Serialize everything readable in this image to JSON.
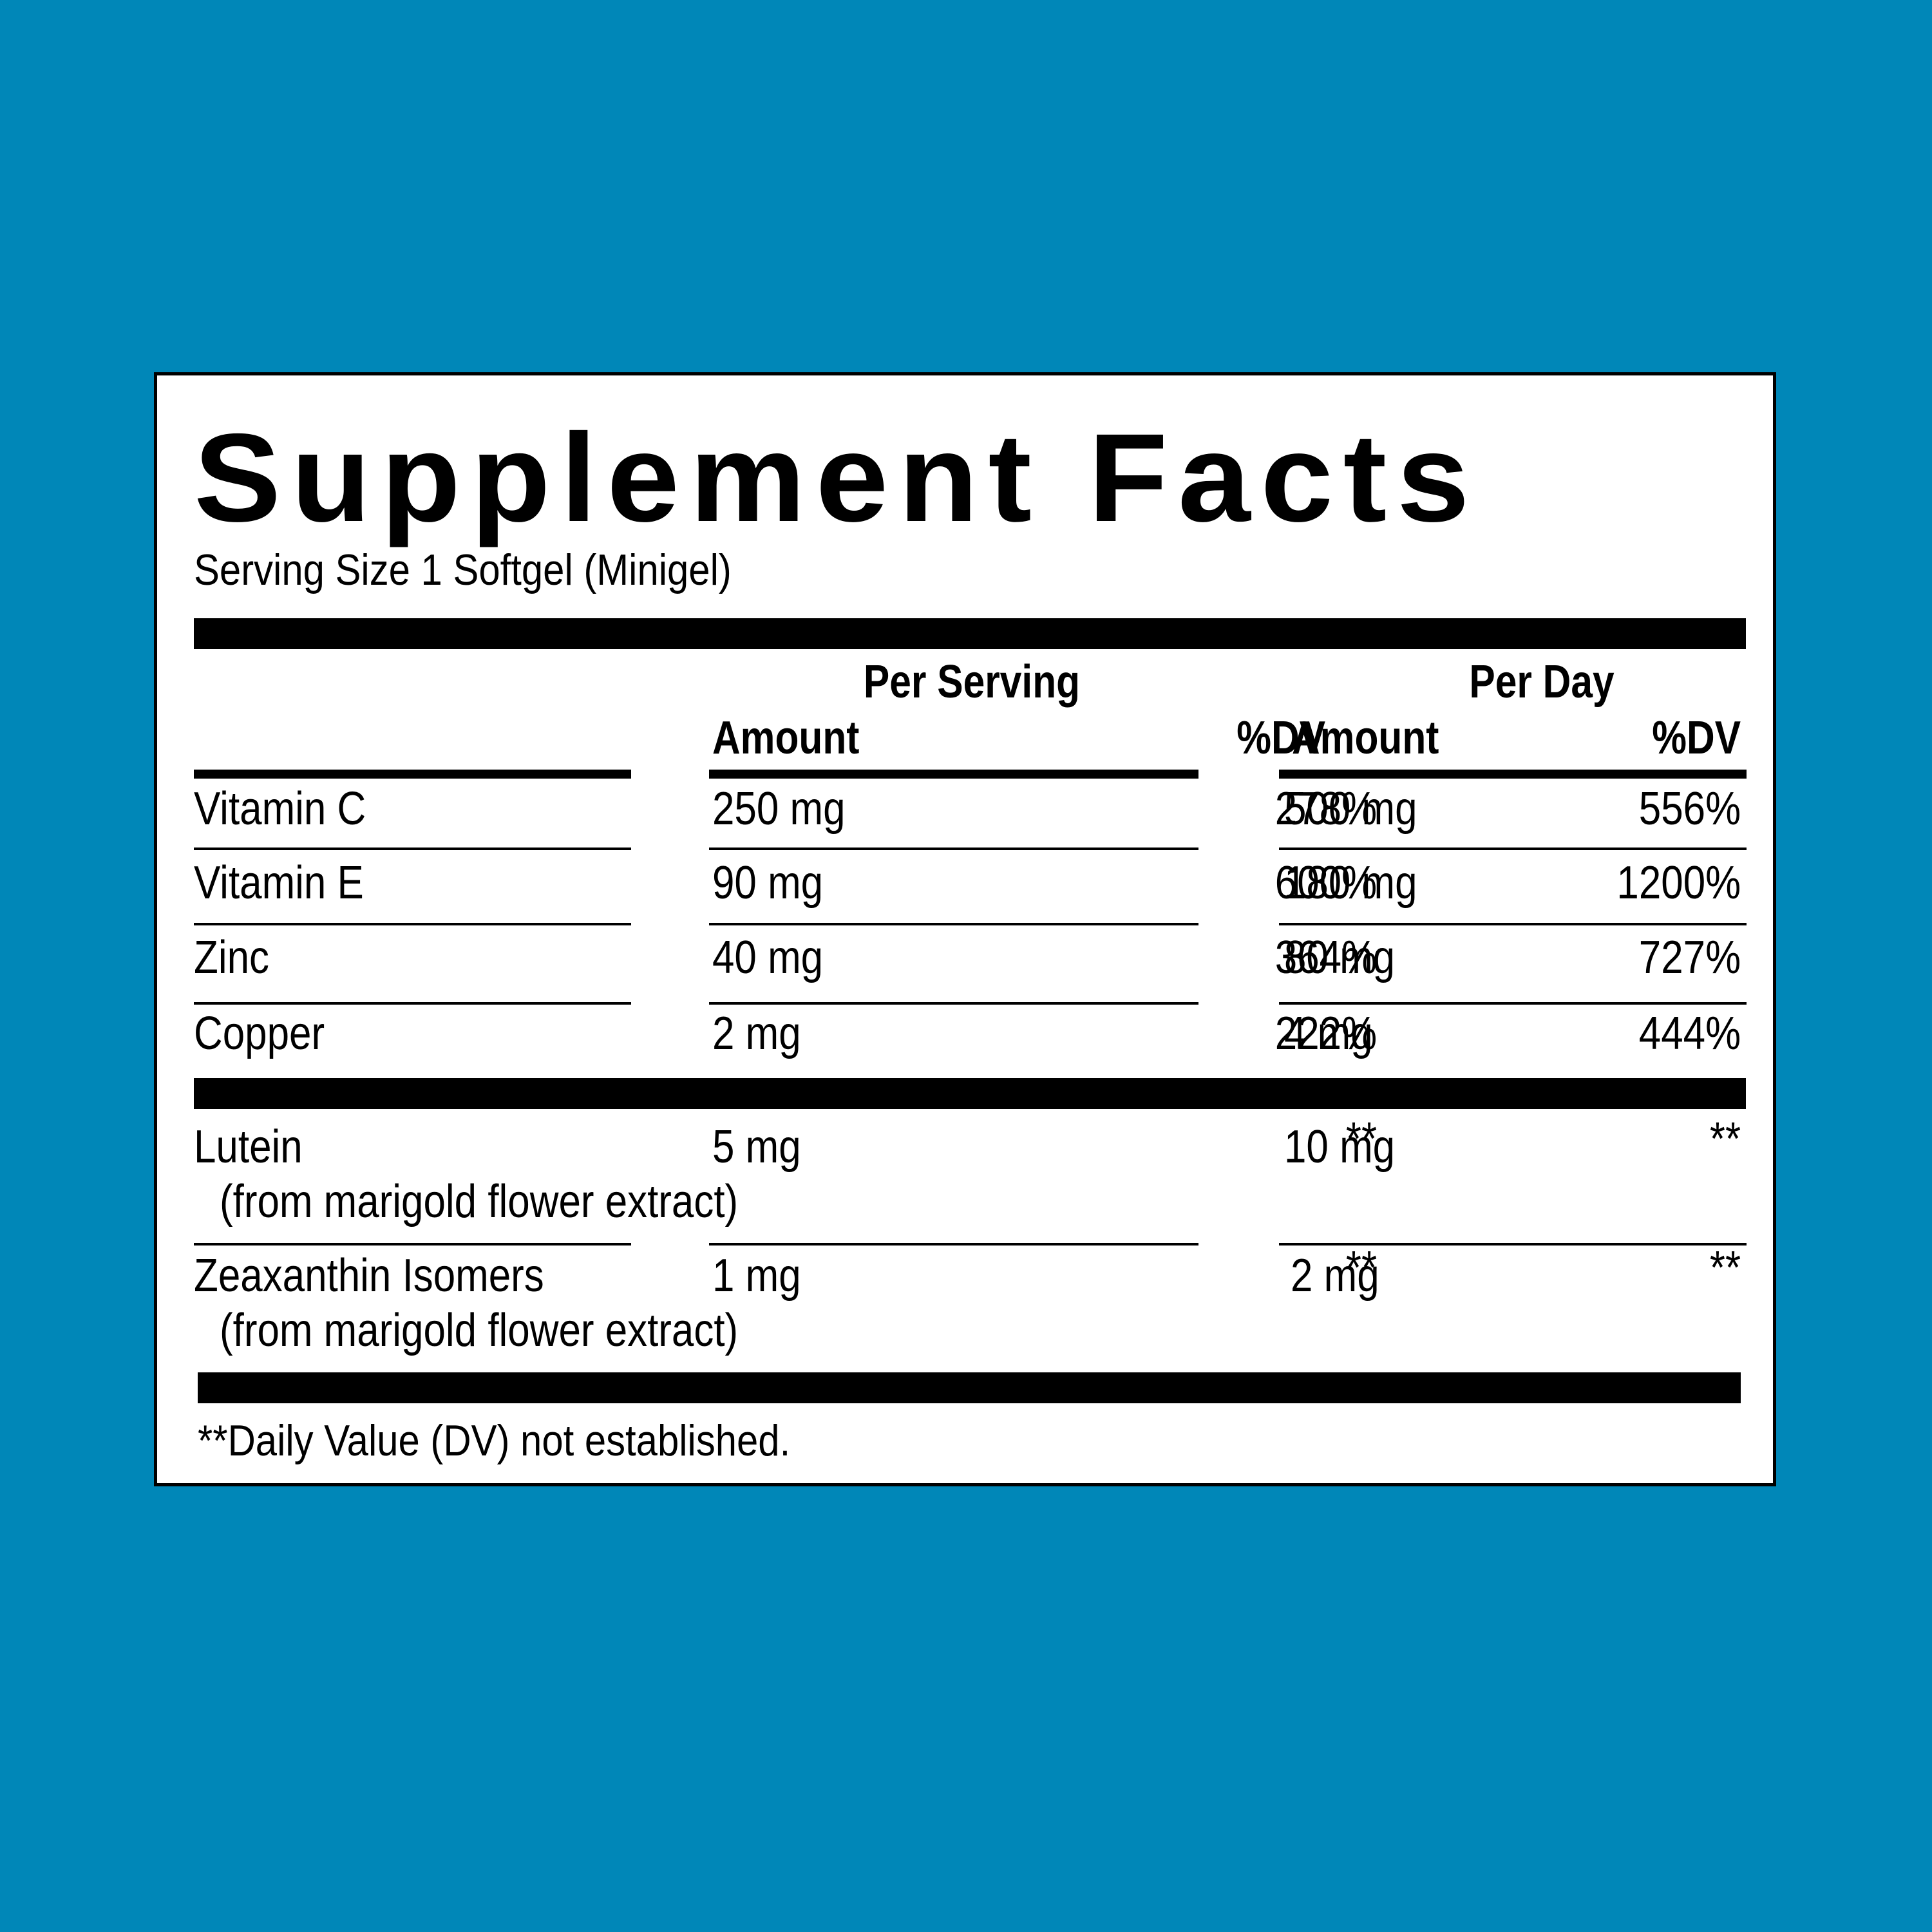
{
  "label": {
    "title": "Supplement Facts",
    "serving_size": "Serving Size 1 Softgel (Minigel)",
    "group_headers": {
      "per_serving": "Per Serving",
      "per_day": "Per Day"
    },
    "column_headers": {
      "serving_amount": "Amount",
      "serving_dv": "%DV",
      "day_amount": "Amount",
      "day_dv": "%DV"
    },
    "rows": [
      {
        "name": "Vitamin C",
        "serving_amount": "250 mg",
        "serving_dv": "278%",
        "day_amount": "500 mg",
        "day_dv": "556%"
      },
      {
        "name": "Vitamin E",
        "serving_amount": "90 mg",
        "serving_dv": "600%",
        "day_amount": "180 mg",
        "day_dv": "1200%"
      },
      {
        "name": "Zinc",
        "serving_amount": "40 mg",
        "serving_dv": "364%",
        "day_amount": "80 mg",
        "day_dv": "727%"
      },
      {
        "name": "Copper",
        "serving_amount": "2 mg",
        "serving_dv": "222%",
        "day_amount": "4 mg",
        "day_dv": "444%"
      },
      {
        "name": "Lutein",
        "sub": "(from marigold flower extract)",
        "serving_amount": "5 mg",
        "serving_dv": "**",
        "day_amount": "10 mg",
        "day_dv": "**"
      },
      {
        "name": "Zeaxanthin Isomers",
        "sub": "(from marigold flower extract)",
        "serving_amount": "1 mg",
        "serving_dv": "**",
        "day_amount": "2 mg",
        "day_dv": "**"
      }
    ],
    "footnote": "**Daily Value (DV) not established."
  },
  "colors": {
    "background": "#0087b8",
    "panel": "#ffffff",
    "ink": "#000000"
  }
}
